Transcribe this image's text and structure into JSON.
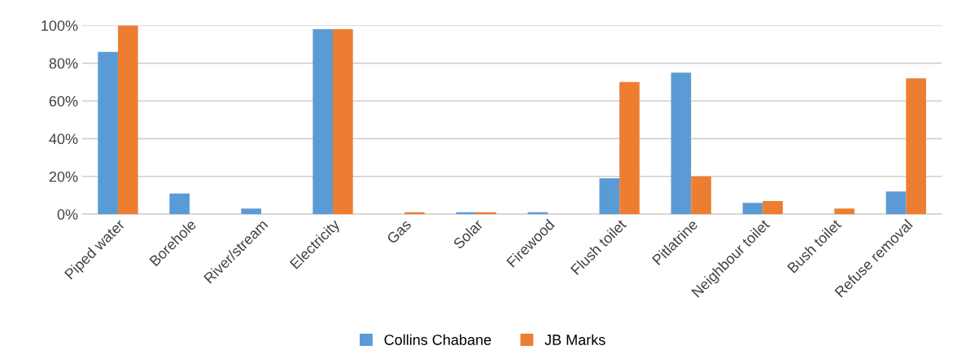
{
  "chart_data": {
    "type": "bar",
    "categories": [
      "Piped water",
      "Borehole",
      "River/stream",
      "Electricity",
      "Gas",
      "Solar",
      "Firewood",
      "Flush toilet",
      "Pitlatrine",
      "Neighbour toilet",
      "Bush toilet",
      "Refuse removal"
    ],
    "series": [
      {
        "name": "Collins Chabane",
        "color": "#5b9bd5",
        "values": [
          86,
          11,
          3,
          98,
          0,
          1,
          1,
          19,
          75,
          6,
          0,
          12
        ]
      },
      {
        "name": "JB Marks",
        "color": "#ed7d31",
        "values": [
          100,
          0,
          0,
          98,
          1,
          1,
          0,
          70,
          20,
          7,
          3,
          72
        ]
      }
    ],
    "ylim": [
      0,
      100
    ],
    "yticks": [
      {
        "value": 0,
        "label": "0%"
      },
      {
        "value": 20,
        "label": "20%"
      },
      {
        "value": 40,
        "label": "40%"
      },
      {
        "value": 60,
        "label": "60%"
      },
      {
        "value": 80,
        "label": "80%"
      },
      {
        "value": 100,
        "label": "100%"
      }
    ],
    "grid": "y",
    "legend": "bottom"
  }
}
